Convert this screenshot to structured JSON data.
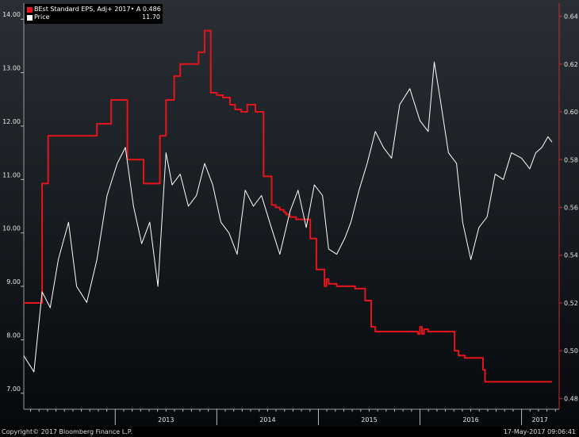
{
  "legend": [
    {
      "name": "BEst Standard EPS, Adj+ 2017• A 0.486",
      "value": "",
      "color": "#e8141b"
    },
    {
      "name": "Price",
      "value": "11.70",
      "color": "#ffffff"
    }
  ],
  "footer": {
    "copyright": "Copyright© 2017 Bloomberg Finance L.P.",
    "timestamp": "17-May-2017 09:06:41"
  },
  "chart_data": {
    "type": "line",
    "title": "",
    "x_labels": [
      "2013",
      "2014",
      "2015",
      "2016",
      "2017"
    ],
    "x_domain": [
      2012.1,
      2017.37
    ],
    "x_label_positions": [
      2013.0,
      2014.0,
      2015.0,
      2016.0,
      2017.0
    ],
    "left_axis": {
      "ticks": [
        "7.00",
        "8.00",
        "9.00",
        "10.00",
        "11.00",
        "12.00",
        "13.00",
        "14.00"
      ],
      "range": [
        6.7,
        14.3
      ]
    },
    "right_axis": {
      "ticks": [
        "0.48",
        "0.50",
        "0.52",
        "0.54",
        "0.56",
        "0.58",
        "0.60",
        "0.62",
        "0.64"
      ],
      "range": [
        0.4755,
        0.6455
      ]
    },
    "series": [
      {
        "name": "BEst Standard EPS, Adj+ 2017• A 0.486",
        "axis": "right",
        "color": "#e8141b",
        "step": true,
        "x": [
          2012.1,
          2012.28,
          2012.34,
          2012.38,
          2012.82,
          2012.96,
          2013.12,
          2013.28,
          2013.44,
          2013.5,
          2013.58,
          2013.64,
          2013.82,
          2013.88,
          2013.94,
          2014.0,
          2014.06,
          2014.13,
          2014.18,
          2014.24,
          2014.3,
          2014.38,
          2014.46,
          2014.54,
          2014.58,
          2014.62,
          2014.66,
          2014.68,
          2014.72,
          2014.78,
          2014.92,
          2014.98,
          2015.06,
          2015.08,
          2015.1,
          2015.18,
          2015.36,
          2015.46,
          2015.52,
          2015.56,
          2015.98,
          2016.0,
          2016.02,
          2016.04,
          2016.08,
          2016.34,
          2016.38,
          2016.44,
          2016.62,
          2016.64,
          2017.3
        ],
        "y": [
          0.52,
          0.57,
          0.59,
          0.59,
          0.595,
          0.605,
          0.58,
          0.57,
          0.59,
          0.605,
          0.615,
          0.62,
          0.625,
          0.634,
          0.608,
          0.607,
          0.606,
          0.603,
          0.601,
          0.6,
          0.603,
          0.6,
          0.573,
          0.561,
          0.56,
          0.559,
          0.558,
          0.557,
          0.556,
          0.555,
          0.547,
          0.534,
          0.527,
          0.53,
          0.528,
          0.527,
          0.526,
          0.521,
          0.51,
          0.508,
          0.507,
          0.51,
          0.507,
          0.509,
          0.508,
          0.5,
          0.498,
          0.497,
          0.492,
          0.487,
          0.487
        ]
      },
      {
        "name": "Price",
        "axis": "left",
        "color": "#ffffff",
        "step": false,
        "x": [
          2012.1,
          2012.2,
          2012.28,
          2012.36,
          2012.44,
          2012.54,
          2012.62,
          2012.72,
          2012.82,
          2012.92,
          2013.02,
          2013.1,
          2013.18,
          2013.26,
          2013.34,
          2013.42,
          2013.5,
          2013.56,
          2013.64,
          2013.72,
          2013.8,
          2013.88,
          2013.96,
          2014.04,
          2014.12,
          2014.2,
          2014.28,
          2014.36,
          2014.44,
          2014.52,
          2014.62,
          2014.72,
          2014.8,
          2014.88,
          2014.96,
          2015.04,
          2015.1,
          2015.18,
          2015.26,
          2015.32,
          2015.4,
          2015.48,
          2015.56,
          2015.64,
          2015.72,
          2015.8,
          2015.9,
          2016.0,
          2016.08,
          2016.14,
          2016.2,
          2016.28,
          2016.36,
          2016.42,
          2016.5,
          2016.58,
          2016.66,
          2016.74,
          2016.82,
          2016.9,
          2017.0,
          2017.08,
          2017.14,
          2017.2,
          2017.26,
          2017.3
        ],
        "y": [
          7.7,
          7.4,
          8.9,
          8.6,
          9.5,
          10.2,
          9.0,
          8.7,
          9.5,
          10.7,
          11.3,
          11.6,
          10.5,
          9.8,
          10.2,
          9.0,
          11.5,
          10.9,
          11.1,
          10.5,
          10.7,
          11.3,
          10.9,
          10.2,
          10.0,
          9.6,
          10.8,
          10.5,
          10.7,
          10.2,
          9.6,
          10.4,
          10.8,
          10.1,
          10.9,
          10.7,
          9.7,
          9.6,
          9.9,
          10.2,
          10.8,
          11.3,
          11.9,
          11.6,
          11.4,
          12.4,
          12.7,
          12.1,
          11.9,
          13.2,
          12.5,
          11.5,
          11.3,
          10.2,
          9.5,
          10.1,
          10.3,
          11.1,
          11.0,
          11.5,
          11.4,
          11.2,
          11.5,
          11.6,
          11.8,
          11.7
        ]
      }
    ]
  }
}
